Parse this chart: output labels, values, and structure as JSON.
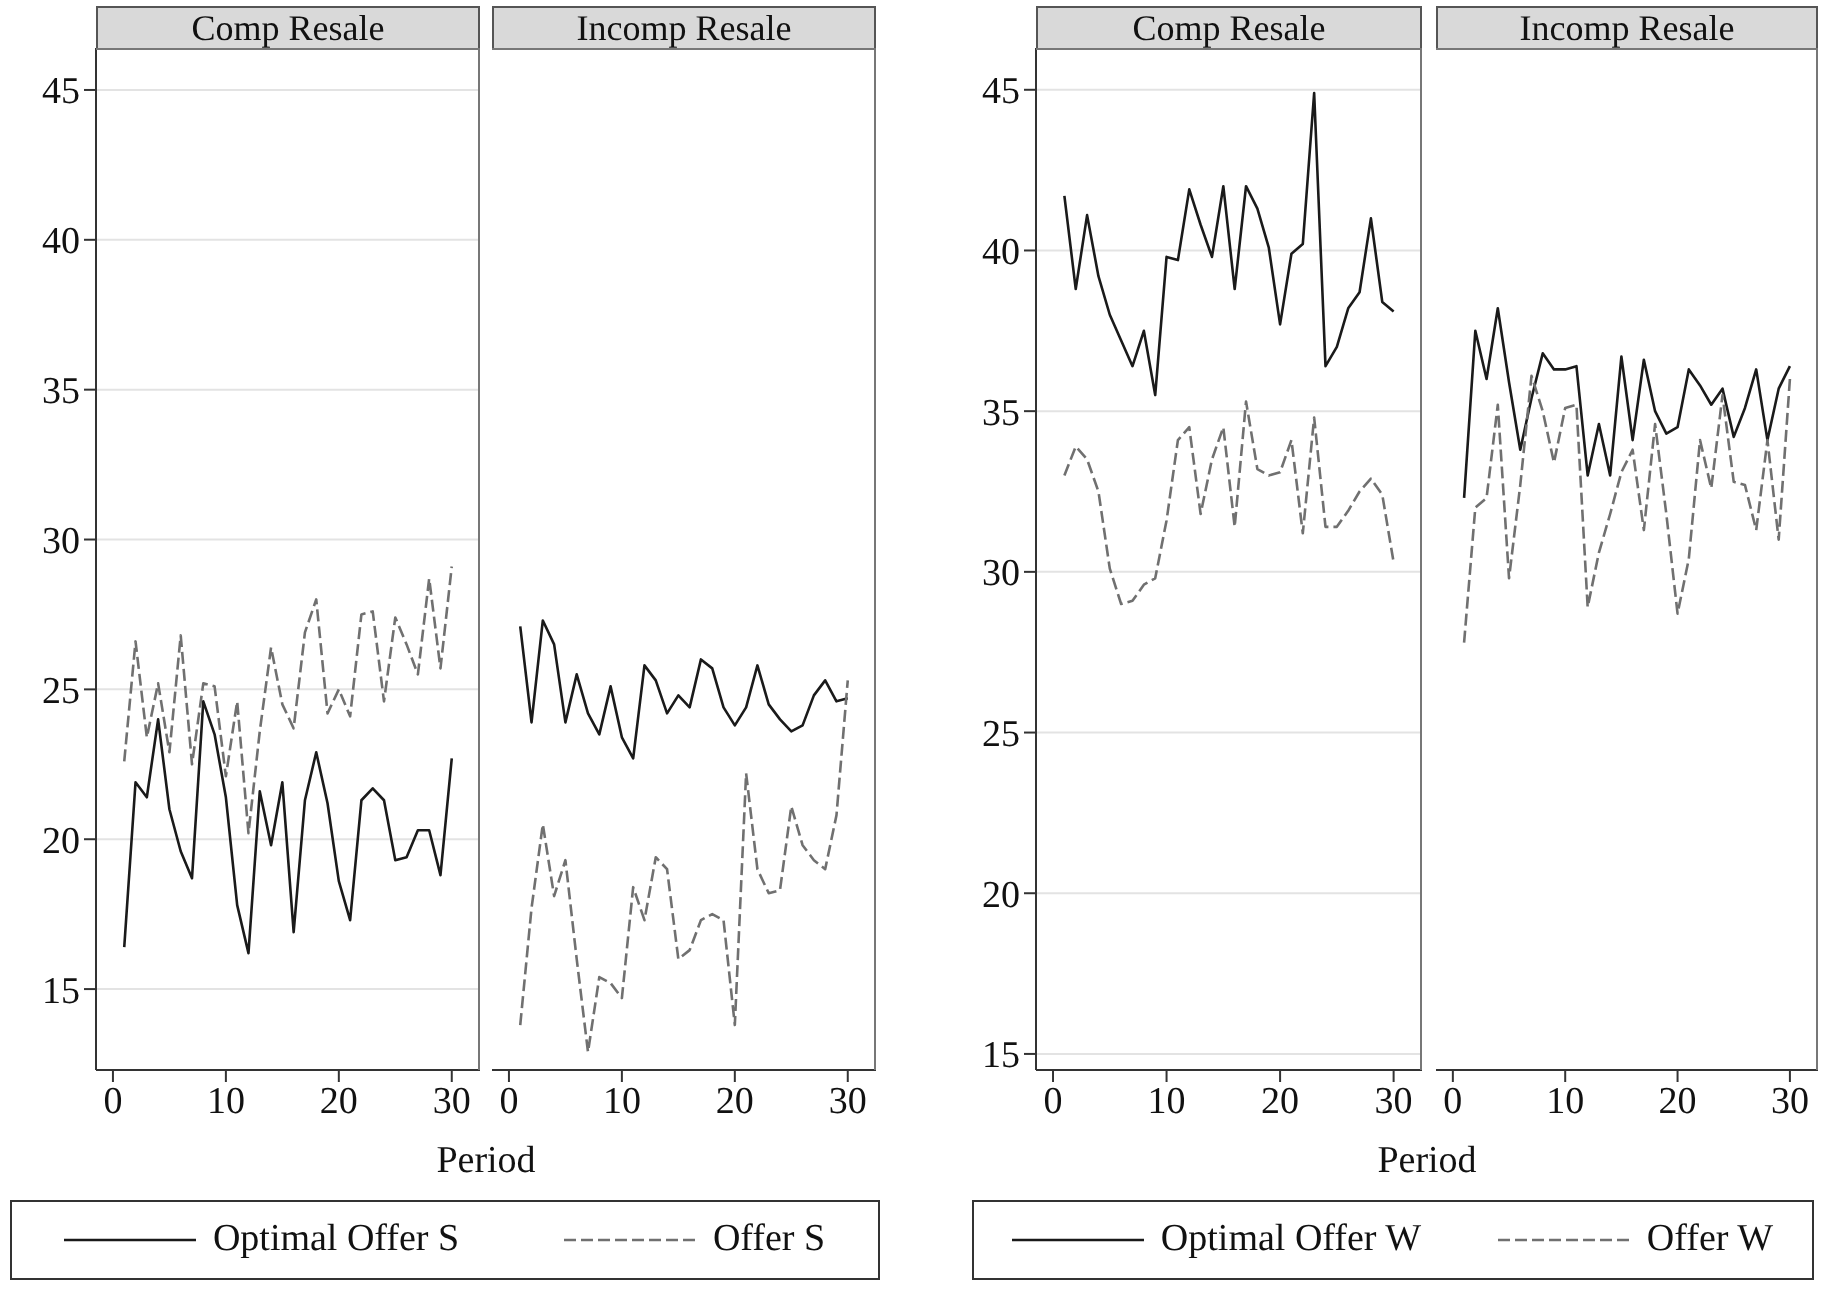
{
  "chart_data": [
    {
      "type": "line",
      "title": "Comp Resale",
      "xlabel": "Period",
      "x": [
        1,
        2,
        3,
        4,
        5,
        6,
        7,
        8,
        9,
        10,
        11,
        12,
        13,
        14,
        15,
        16,
        17,
        18,
        19,
        20,
        21,
        22,
        23,
        24,
        25,
        26,
        27,
        28,
        29,
        30
      ],
      "xlim": [
        -1.5,
        32.5
      ],
      "xticks": [
        0,
        10,
        20,
        30
      ],
      "ylim": [
        12.3,
        46.4
      ],
      "yticks": [
        15,
        20,
        25,
        30,
        35,
        40,
        45
      ],
      "grid": "y",
      "legend": "bottom",
      "marker": "none",
      "series": [
        {
          "name": "Optimal Offer S",
          "color": "#1a1a1a",
          "line_style": "solid",
          "values": [
            16.4,
            21.9,
            21.4,
            24,
            21,
            19.6,
            18.7,
            24.6,
            23.5,
            21.4,
            17.8,
            16.2,
            21.6,
            19.8,
            21.9,
            16.9,
            21.3,
            22.9,
            21.2,
            18.6,
            17.3,
            21.3,
            21.7,
            21.3,
            19.3,
            19.4,
            20.3,
            20.3,
            18.8,
            22.7
          ]
        },
        {
          "name": "Offer S",
          "color": "#707070",
          "line_style": "dashed",
          "values": [
            22.6,
            26.6,
            23.4,
            25.2,
            22.9,
            26.8,
            22.5,
            25.2,
            25.1,
            22.1,
            24.6,
            20.2,
            23.6,
            26.4,
            24.5,
            23.7,
            26.9,
            28,
            24.2,
            25,
            24.1,
            27.5,
            27.6,
            24.6,
            27.4,
            26.5,
            25.5,
            28.7,
            25.7,
            29.1
          ]
        }
      ]
    },
    {
      "type": "line",
      "title": "Incomp Resale",
      "x": [
        1,
        2,
        3,
        4,
        5,
        6,
        7,
        8,
        9,
        10,
        11,
        12,
        13,
        14,
        15,
        16,
        17,
        18,
        19,
        20,
        21,
        22,
        23,
        24,
        25,
        26,
        27,
        28,
        29,
        30
      ],
      "xlim": [
        -1.5,
        32.5
      ],
      "xticks": [
        0,
        10,
        20,
        30
      ],
      "ylim": [
        12.3,
        46.4
      ],
      "yticks": [
        15,
        20,
        25,
        30,
        35,
        40,
        45
      ],
      "tick_labels": "x",
      "grid": "y",
      "marker": "none",
      "series": [
        {
          "color": "#1a1a1a",
          "line_style": "solid",
          "values": [
            27.1,
            23.9,
            27.3,
            26.5,
            23.9,
            25.5,
            24.2,
            23.5,
            25.1,
            23.4,
            22.7,
            25.8,
            25.3,
            24.2,
            24.8,
            24.4,
            26,
            25.7,
            24.4,
            23.8,
            24.4,
            25.8,
            24.5,
            24,
            23.6,
            23.8,
            24.8,
            25.3,
            24.6,
            24.7
          ]
        },
        {
          "color": "#707070",
          "line_style": "dashed",
          "values": [
            13.8,
            17.7,
            20.5,
            18.1,
            19.3,
            16,
            12.9,
            15.4,
            15.2,
            14.7,
            18.4,
            17.3,
            19.4,
            19,
            16,
            16.3,
            17.3,
            17.5,
            17.3,
            13.8,
            22.2,
            19,
            18.2,
            18.3,
            21.1,
            19.8,
            19.3,
            19,
            20.8,
            25.3
          ]
        }
      ]
    },
    {
      "type": "line",
      "title": "Comp Resale",
      "xlabel": "Period",
      "x": [
        1,
        2,
        3,
        4,
        5,
        6,
        7,
        8,
        9,
        10,
        11,
        12,
        13,
        14,
        15,
        16,
        17,
        18,
        19,
        20,
        21,
        22,
        23,
        24,
        25,
        26,
        27,
        28,
        29,
        30
      ],
      "xlim": [
        -1.5,
        32.5
      ],
      "xticks": [
        0,
        10,
        20,
        30
      ],
      "ylim": [
        14.5,
        46.3
      ],
      "yticks": [
        15,
        20,
        25,
        30,
        35,
        40,
        45
      ],
      "grid": "y",
      "legend": "bottom",
      "marker": "none",
      "series": [
        {
          "name": "Optimal Offer W",
          "color": "#1a1a1a",
          "line_style": "solid",
          "values": [
            41.7,
            38.8,
            41.1,
            39.2,
            38,
            37.2,
            36.4,
            37.5,
            35.5,
            39.8,
            39.7,
            41.9,
            40.8,
            39.8,
            42,
            38.8,
            42,
            41.3,
            40.1,
            37.7,
            39.9,
            40.2,
            44.9,
            36.4,
            37,
            38.2,
            38.7,
            41,
            38.4,
            38.1
          ]
        },
        {
          "name": "Offer W",
          "color": "#707070",
          "line_style": "dashed",
          "values": [
            33,
            33.9,
            33.5,
            32.5,
            30.1,
            29,
            29.1,
            29.6,
            29.8,
            31.6,
            34.1,
            34.5,
            31.8,
            33.5,
            34.5,
            31.4,
            35.3,
            33.2,
            33,
            33.1,
            34.1,
            31.2,
            34.8,
            31.4,
            31.4,
            31.9,
            32.5,
            32.9,
            32.4,
            30.3
          ]
        }
      ]
    },
    {
      "type": "line",
      "title": "Incomp Resale",
      "x": [
        1,
        2,
        3,
        4,
        5,
        6,
        7,
        8,
        9,
        10,
        11,
        12,
        13,
        14,
        15,
        16,
        17,
        18,
        19,
        20,
        21,
        22,
        23,
        24,
        25,
        26,
        27,
        28,
        29,
        30
      ],
      "xlim": [
        -1.5,
        32.5
      ],
      "xticks": [
        0,
        10,
        20,
        30
      ],
      "ylim": [
        14.5,
        46.3
      ],
      "yticks": [
        15,
        20,
        25,
        30,
        35,
        40,
        45
      ],
      "tick_labels": "x",
      "grid": "y",
      "marker": "none",
      "series": [
        {
          "color": "#1a1a1a",
          "line_style": "solid",
          "values": [
            32.3,
            37.5,
            36,
            38.2,
            35.9,
            33.8,
            35.4,
            36.8,
            36.3,
            36.3,
            36.4,
            33,
            34.6,
            33,
            36.7,
            34.1,
            36.6,
            35,
            34.3,
            34.5,
            36.3,
            35.8,
            35.2,
            35.7,
            34.2,
            35.1,
            36.3,
            34.1,
            35.7,
            36.4
          ]
        },
        {
          "color": "#707070",
          "line_style": "dashed",
          "values": [
            27.8,
            32,
            32.3,
            35.2,
            29.8,
            32.7,
            36.1,
            35,
            33.4,
            35.1,
            35.2,
            28.9,
            30.6,
            31.8,
            33.1,
            33.8,
            31.3,
            34.6,
            31.8,
            28.7,
            30.4,
            34.1,
            32.6,
            35.5,
            32.8,
            32.7,
            31.3,
            34.1,
            31,
            36
          ]
        }
      ]
    }
  ]
}
